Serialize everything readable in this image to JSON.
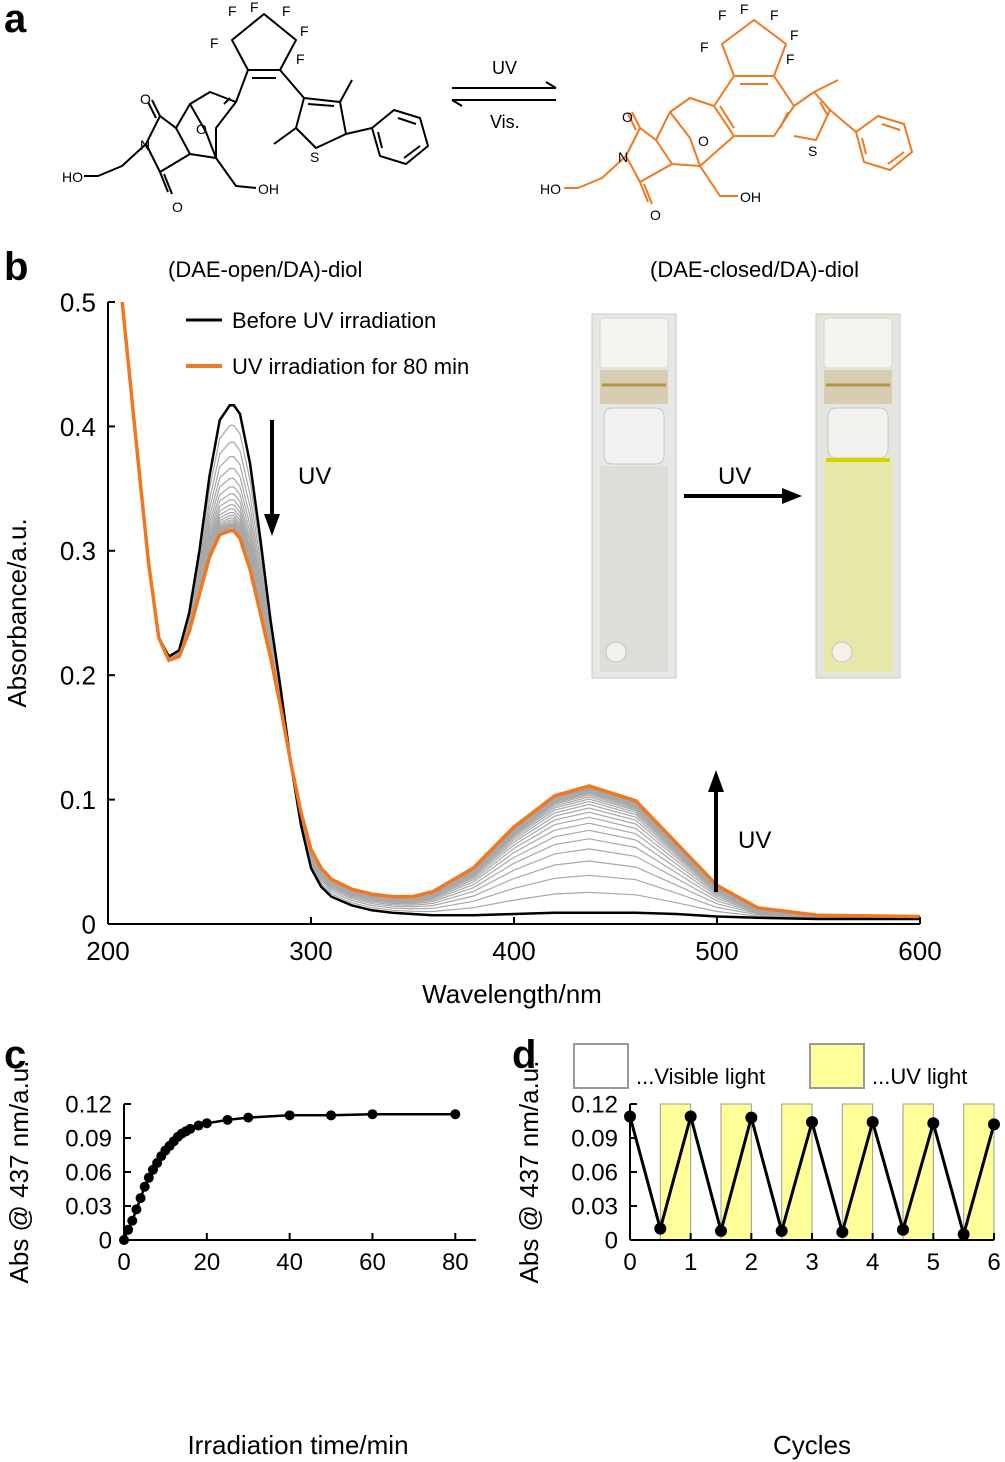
{
  "panels": {
    "a": "a",
    "b": "b",
    "c": "c",
    "d": "d"
  },
  "scheme": {
    "arrow_forward": "UV",
    "arrow_back": "Vis.",
    "atoms_open": [
      "F",
      "F",
      "F",
      "F",
      "F",
      "F",
      "O",
      "O",
      "N",
      "O",
      "HO",
      "OH",
      "S"
    ],
    "atoms_closed": [
      "F",
      "F",
      "F",
      "F",
      "F",
      "F",
      "O",
      "O",
      "N",
      "O",
      "HO",
      "OH",
      "S"
    ],
    "closed_color": "#f07820"
  },
  "photos": {
    "left_caption": "(DAE-open/DA)-diol",
    "right_caption": "(DAE-closed/DA)-diol",
    "arrow_label": "UV"
  },
  "chart_data": [
    {
      "id": "b",
      "type": "line",
      "title": "",
      "xlabel": "Wavelength/nm",
      "ylabel": "Absorbance/a.u.",
      "xlim": [
        200,
        600
      ],
      "ylim": [
        0,
        0.5
      ],
      "xticks": [
        200,
        300,
        400,
        500,
        600
      ],
      "yticks": [
        0,
        0.1,
        0.2,
        0.3,
        0.4,
        0.5
      ],
      "ytick_labels": [
        "0",
        "0.1",
        "0.2",
        "0.3",
        "0.4",
        "0.5"
      ],
      "legend": [
        "Before UV irradiation",
        "UV irradiation for 80 min"
      ],
      "legend_position": "top-left",
      "annotations": [
        "UV",
        "UV"
      ],
      "colors": {
        "before": "#000000",
        "after": "#f07820",
        "intermediate": "#a8a8a8"
      },
      "band_model": {
        "uv_peak_nm": 262,
        "uv_peak_before": 0.417,
        "uv_peak_after": 0.316,
        "vis_peak_nm": 437,
        "vis_peak_before": 0.009,
        "vis_peak_after": 0.111,
        "isosbestic_nm": 284,
        "intermediate_spectra": 24
      },
      "series": [
        {
          "name": "Before UV irradiation",
          "x": [
            207,
            215,
            220,
            225,
            230,
            235,
            240,
            245,
            250,
            255,
            260,
            262,
            265,
            270,
            275,
            280,
            285,
            290,
            295,
            300,
            305,
            310,
            320,
            330,
            340,
            350,
            360,
            380,
            400,
            420,
            437,
            460,
            480,
            500,
            520,
            550,
            600
          ],
          "values": [
            0.5,
            0.37,
            0.29,
            0.23,
            0.215,
            0.22,
            0.25,
            0.3,
            0.36,
            0.405,
            0.417,
            0.417,
            0.41,
            0.37,
            0.31,
            0.245,
            0.19,
            0.13,
            0.08,
            0.045,
            0.03,
            0.022,
            0.015,
            0.011,
            0.009,
            0.008,
            0.007,
            0.007,
            0.008,
            0.009,
            0.009,
            0.009,
            0.008,
            0.006,
            0.005,
            0.004,
            0.004
          ]
        },
        {
          "name": "UV irradiation for 80 min",
          "x": [
            207,
            215,
            220,
            225,
            230,
            235,
            240,
            245,
            250,
            255,
            260,
            262,
            265,
            270,
            275,
            280,
            285,
            290,
            295,
            300,
            305,
            310,
            320,
            330,
            340,
            350,
            360,
            380,
            400,
            420,
            437,
            460,
            480,
            500,
            520,
            550,
            600
          ],
          "values": [
            0.5,
            0.37,
            0.29,
            0.23,
            0.212,
            0.215,
            0.235,
            0.265,
            0.295,
            0.313,
            0.316,
            0.316,
            0.31,
            0.285,
            0.25,
            0.215,
            0.175,
            0.13,
            0.09,
            0.06,
            0.045,
            0.036,
            0.028,
            0.024,
            0.022,
            0.022,
            0.026,
            0.045,
            0.078,
            0.103,
            0.111,
            0.099,
            0.065,
            0.031,
            0.013,
            0.007,
            0.006
          ]
        }
      ]
    },
    {
      "id": "c",
      "type": "line",
      "title": "",
      "xlabel": "Irradiation time/min",
      "ylabel": "Abs @ 437 nm/a.u.",
      "xlim": [
        0,
        85
      ],
      "ylim": [
        0,
        0.12
      ],
      "xticks": [
        0,
        20,
        40,
        60,
        80
      ],
      "yticks": [
        0,
        0.03,
        0.06,
        0.09,
        0.12
      ],
      "ytick_labels": [
        "0",
        "0.03",
        "0.06",
        "0.09",
        "0.12"
      ],
      "series": [
        {
          "name": "Abs @ 437 nm",
          "x": [
            0,
            1,
            2,
            3,
            4,
            5,
            6,
            7,
            8,
            9,
            10,
            11,
            12,
            13,
            14,
            15,
            16,
            18,
            20,
            25,
            30,
            40,
            50,
            60,
            80
          ],
          "values": [
            0,
            0.009,
            0.017,
            0.027,
            0.037,
            0.047,
            0.055,
            0.062,
            0.068,
            0.074,
            0.079,
            0.083,
            0.087,
            0.091,
            0.094,
            0.096,
            0.098,
            0.101,
            0.103,
            0.106,
            0.108,
            0.11,
            0.11,
            0.111,
            0.111
          ]
        }
      ]
    },
    {
      "id": "d",
      "type": "line",
      "title": "",
      "xlabel": "Cycles",
      "ylabel": "Abs @ 437 nm/a.u.",
      "xlim": [
        0,
        6
      ],
      "ylim": [
        0,
        0.12
      ],
      "xticks": [
        0,
        1,
        2,
        3,
        4,
        5,
        6
      ],
      "yticks": [
        0,
        0.03,
        0.06,
        0.09,
        0.12
      ],
      "ytick_labels": [
        "0",
        "0.03",
        "0.06",
        "0.09",
        "0.12"
      ],
      "legend": [
        "...Visible light",
        "...UV light"
      ],
      "legend_position": "top",
      "colors": {
        "visible": "#ffffff",
        "uv": "#ffff99"
      },
      "uv_bands": [
        [
          0.5,
          1
        ],
        [
          1.5,
          2
        ],
        [
          2.5,
          3
        ],
        [
          3.5,
          4
        ],
        [
          4.5,
          5
        ],
        [
          5.5,
          6
        ]
      ],
      "series": [
        {
          "name": "Abs @ 437 nm",
          "x": [
            0,
            0.5,
            1,
            1.5,
            2,
            2.5,
            3,
            3.5,
            4,
            4.5,
            5,
            5.5,
            6
          ],
          "values": [
            0.109,
            0.01,
            0.109,
            0.008,
            0.108,
            0.008,
            0.104,
            0.007,
            0.104,
            0.009,
            0.103,
            0.005,
            0.102
          ]
        }
      ]
    }
  ]
}
